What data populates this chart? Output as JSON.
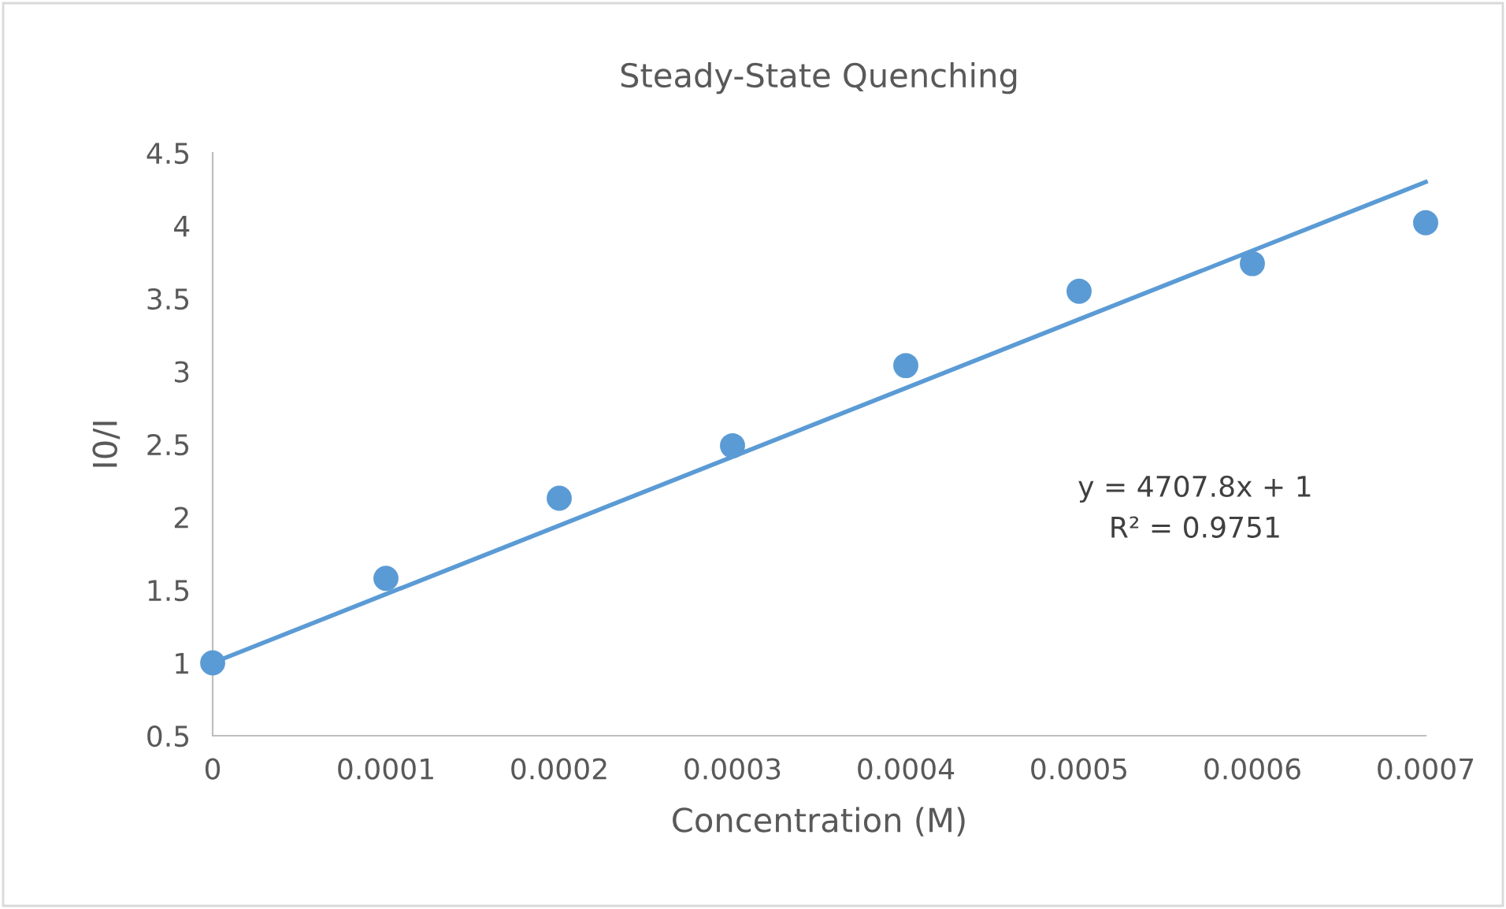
{
  "chart_data": {
    "type": "scatter",
    "title": "Steady-State Quenching",
    "xlabel": "Concentration (M)",
    "ylabel": "I0/I",
    "x": [
      0,
      0.0001,
      0.0002,
      0.0003,
      0.0004,
      0.0005,
      0.0006,
      0.0007
    ],
    "series": [
      {
        "color": "#5b9bd5",
        "values": [
          1.0,
          1.58,
          2.13,
          2.49,
          3.04,
          3.55,
          3.74,
          4.02
        ],
        "marker": "circle"
      },
      {
        "type": "line",
        "color": "#5b9bd5",
        "x": [
          0,
          0.0007
        ],
        "values": [
          1,
          4.3
        ],
        "line_style": "solid"
      }
    ],
    "annotations": [
      "y = 4707.8x + 1",
      "R² = 0.9751"
    ],
    "xlim": [
      0,
      0.0007
    ],
    "ylim": [
      0.5,
      4.5
    ],
    "xticks": [
      0,
      0.0001,
      0.0002,
      0.0003,
      0.0004,
      0.0005,
      0.0006,
      0.0007
    ],
    "yticks": [
      0.5,
      1,
      1.5,
      2,
      2.5,
      3,
      3.5,
      4,
      4.5
    ],
    "grid": false,
    "legend": false
  }
}
